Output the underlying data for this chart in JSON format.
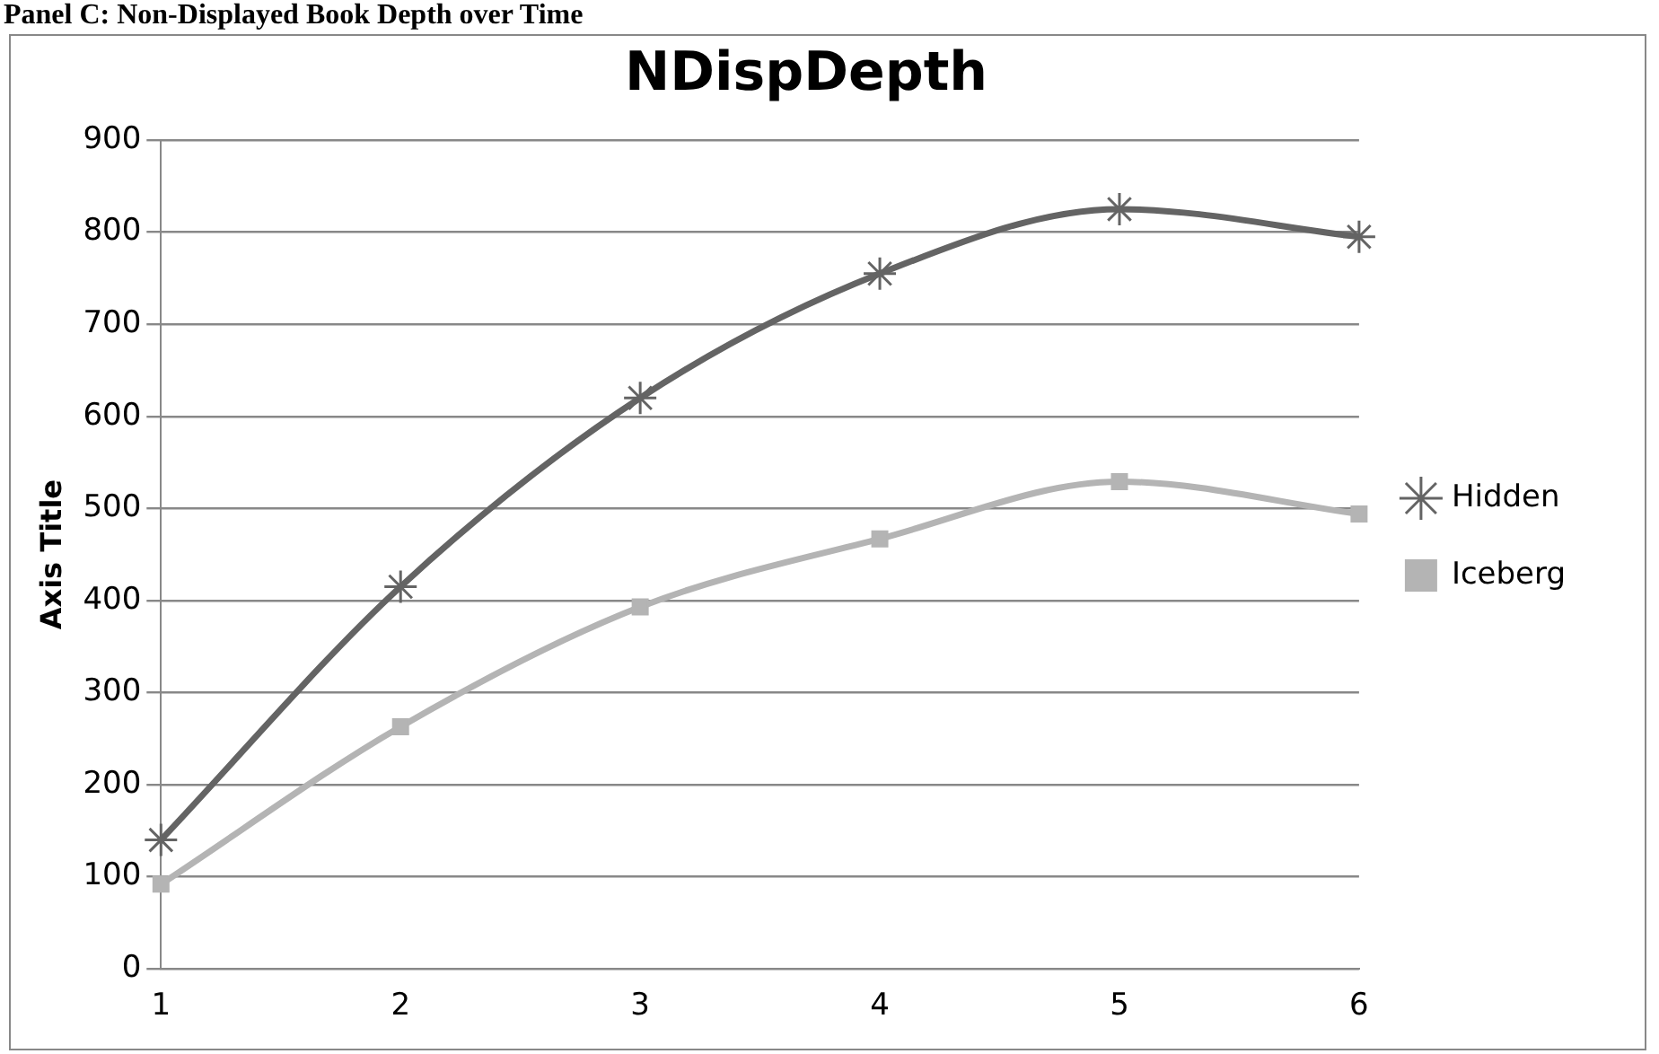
{
  "chart_data": {
    "type": "line",
    "title": "NDispDepth",
    "ylabel": "Axis Title",
    "annotations": [
      "Panel C: Non-Displayed Book Depth over Time"
    ],
    "categories": [
      "1",
      "2",
      "3",
      "4",
      "5",
      "6"
    ],
    "series": [
      {
        "name": "Hidden",
        "color": "#646464",
        "marker": "cross",
        "values": [
          140,
          415,
          620,
          755,
          825,
          795
        ]
      },
      {
        "name": "Iceberg",
        "color": "#b4b4b4",
        "marker": "square",
        "values": [
          92,
          263,
          393,
          467,
          529,
          494
        ]
      }
    ],
    "ylim": [
      0,
      900
    ],
    "yticks": [
      0,
      100,
      200,
      300,
      400,
      500,
      600,
      700,
      800,
      900
    ],
    "grid": "y",
    "legend": "right"
  }
}
